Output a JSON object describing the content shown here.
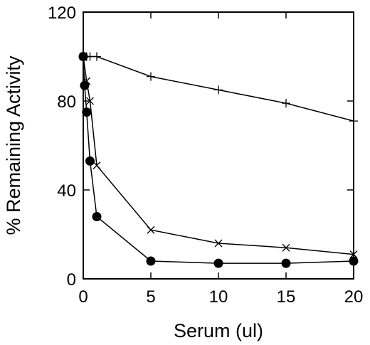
{
  "chart_data": {
    "type": "line",
    "xlabel": "Serum (ul)",
    "ylabel": "% Remaining Activity",
    "xlim": [
      0,
      20
    ],
    "ylim": [
      0,
      120
    ],
    "xticks": [
      0,
      5,
      10,
      15,
      20
    ],
    "xtick_labels": [
      "0",
      "5",
      "10",
      "15",
      "20"
    ],
    "yticks": [
      0,
      40,
      80,
      120
    ],
    "ytick_labels": [
      "0",
      "40",
      "80",
      "120"
    ],
    "grid": false,
    "legend": "none",
    "series": [
      {
        "marker": "plus",
        "color": "#000000",
        "x": [
          0,
          0.25,
          0.5,
          1,
          5,
          10,
          15,
          20
        ],
        "y": [
          100,
          100,
          100,
          100,
          91,
          85,
          79,
          71
        ]
      },
      {
        "marker": "cross",
        "color": "#000000",
        "x": [
          0,
          0.25,
          0.5,
          1,
          5,
          10,
          15,
          20
        ],
        "y": [
          100,
          89,
          80,
          51,
          22,
          16,
          14,
          11
        ]
      },
      {
        "marker": "filled-circle",
        "color": "#000000",
        "x": [
          0,
          0.1,
          0.25,
          0.5,
          1,
          5,
          10,
          15,
          20
        ],
        "y": [
          100,
          87,
          75,
          53,
          28,
          8,
          7,
          7,
          8
        ]
      }
    ]
  }
}
